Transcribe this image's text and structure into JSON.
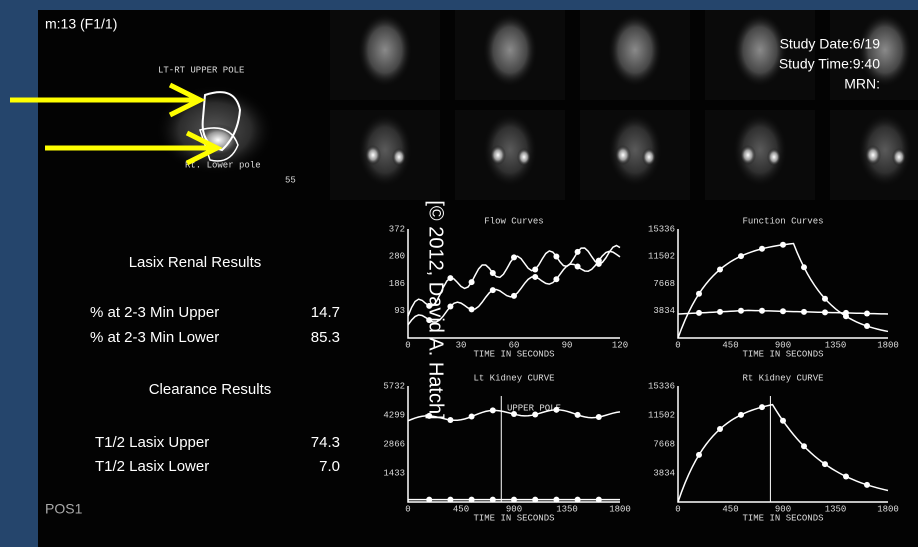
{
  "header": {
    "frame": "m:13 (F1/1)",
    "study_date": "Study Date:6/19",
    "study_time": "Study Time:9:40",
    "mrn": "MRN:"
  },
  "roi": {
    "title": "LT-RT UPPER POLE",
    "lower": "Rt. Lower pole",
    "count": "55"
  },
  "copyright": "[© 2012, David A. Hatch]",
  "results": {
    "title": "Lasix Renal Results",
    "rows": [
      [
        "% at 2-3 Min Upper",
        "14.7"
      ],
      [
        "% at 2-3 Min Lower",
        "85.3"
      ]
    ],
    "clearance_title": "Clearance Results",
    "clearance_rows": [
      [
        "T1/2 Lasix Upper",
        "74.3"
      ],
      [
        "T1/2 Lasix Lower",
        "7.0"
      ]
    ]
  },
  "footer": "POS1",
  "panels": [
    {
      "title": "Flow Curves",
      "yticks": [
        "372",
        "280",
        "186",
        "93"
      ],
      "xticks": [
        "0",
        "30",
        "60",
        "90",
        "120"
      ],
      "xlabel": "TIME IN SECONDS"
    },
    {
      "title": "Function Curves",
      "yticks": [
        "15336",
        "11502",
        "7668",
        "3834"
      ],
      "xticks": [
        "0",
        "450",
        "900",
        "1350",
        "1800"
      ],
      "xlabel": "TIME IN SECONDS"
    },
    {
      "title": "Lt Kidney CURVE",
      "note": "UPPER POLE",
      "yticks": [
        "5732",
        "4299",
        "2866",
        "1433"
      ],
      "xticks": [
        "0",
        "450",
        "900",
        "1350",
        "1800"
      ],
      "xlabel": "TIME IN SECONDS"
    },
    {
      "title": "Rt Kidney CURVE",
      "yticks": [
        "15336",
        "11502",
        "7668",
        "3834"
      ],
      "xticks": [
        "0",
        "450",
        "900",
        "1350",
        "1800"
      ],
      "xlabel": "TIME IN SECONDS"
    }
  ]
}
